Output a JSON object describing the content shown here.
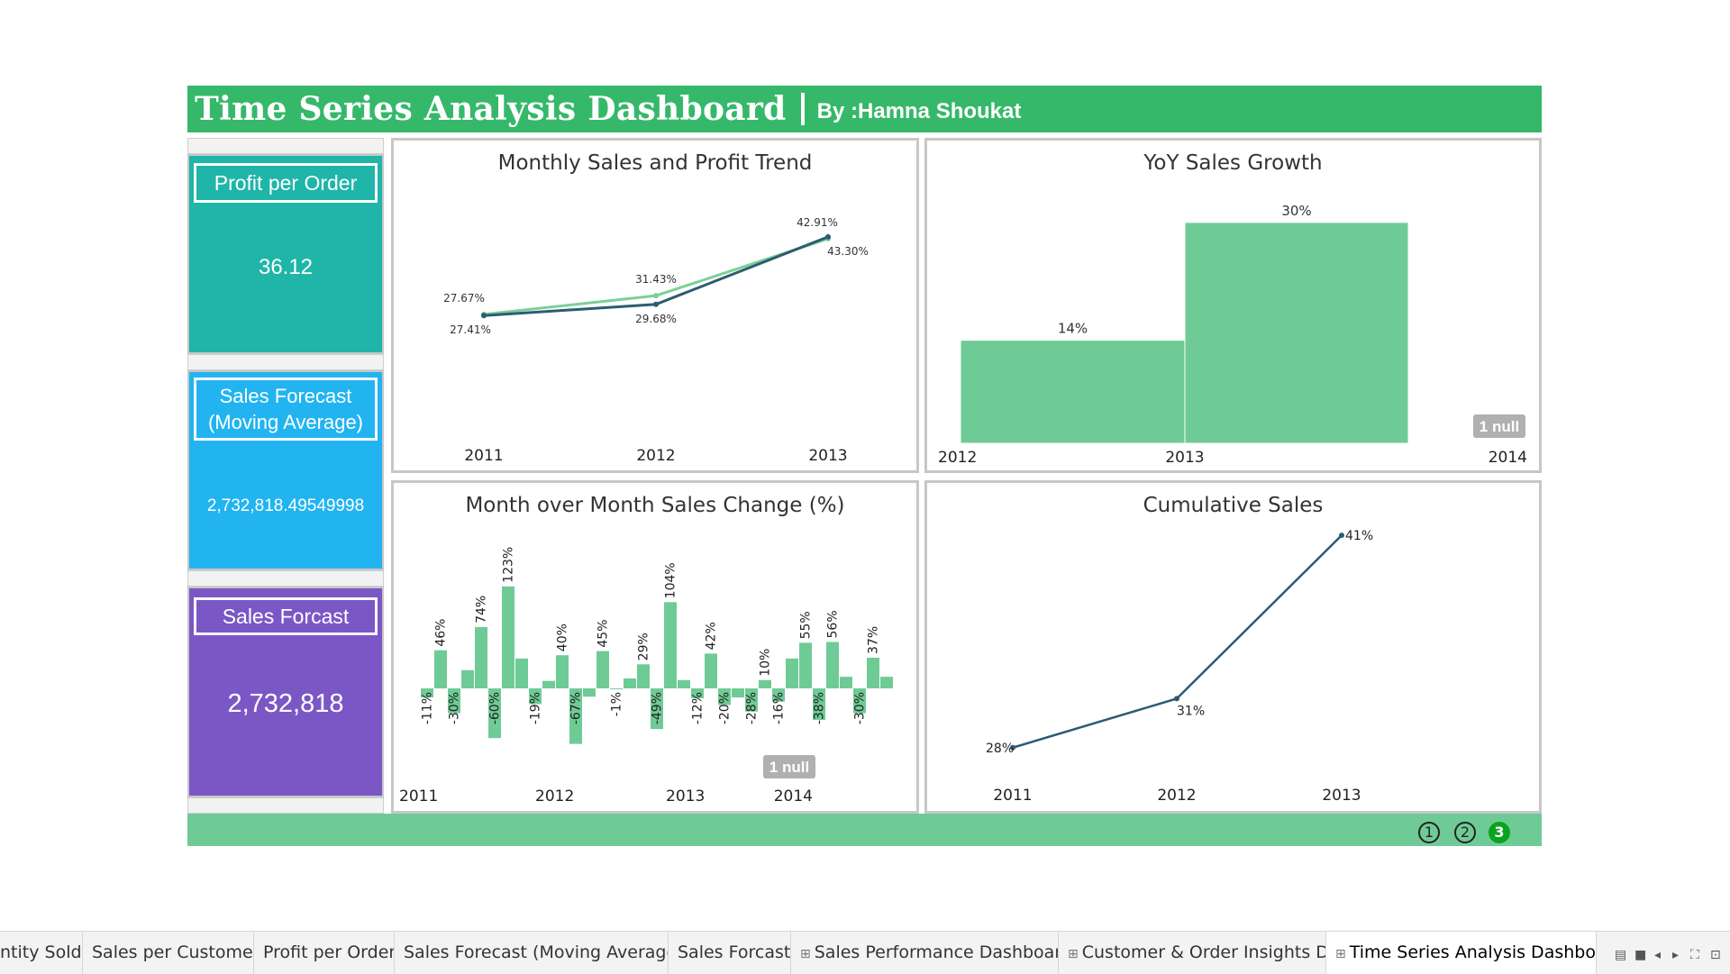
{
  "header": {
    "title": "Time Series Analysis Dashboard",
    "byline": "By :Hamna Shoukat"
  },
  "kpis": [
    {
      "label": "Profit per Order",
      "value": "36.12",
      "color": "#20b5a9"
    },
    {
      "label": "Sales Forecast (Moving Average)",
      "value": "2,732,818.49549998",
      "color": "#22b4f0"
    },
    {
      "label": "Sales Forcast",
      "value": "2,732,818",
      "color": "#7b57c6"
    }
  ],
  "panels": {
    "monthly": {
      "title": "Monthly Sales and Profit Trend"
    },
    "yoy": {
      "title": "YoY Sales Growth",
      "null_badge": "1 null"
    },
    "mom": {
      "title": "Month over Month Sales Change (%)",
      "null_badge": "1 null"
    },
    "cumulative": {
      "title": "Cumulative Sales"
    }
  },
  "chart_data": [
    {
      "type": "line",
      "title": "Monthly Sales and Profit Trend",
      "x": [
        "2011",
        "2012",
        "2013"
      ],
      "series": [
        {
          "values": [
            27.67,
            31.43,
            42.91
          ],
          "labels": [
            "27.67%",
            "31.43%",
            "42.91%"
          ],
          "color": "#7ccf98"
        },
        {
          "values": [
            27.41,
            29.68,
            43.3
          ],
          "labels": [
            "27.41%",
            "29.68%",
            "43.30%"
          ],
          "color": "#2b5c72"
        }
      ],
      "ylim": [
        0,
        60
      ]
    },
    {
      "type": "bar",
      "title": "YoY Sales Growth",
      "x_ticks": [
        "2012",
        "2013",
        "2014"
      ],
      "categories": [
        "2012",
        "2013"
      ],
      "values": [
        14,
        30
      ],
      "labels": [
        "14%",
        "30%"
      ],
      "ylim": [
        0,
        35
      ],
      "color": "#6fcb95"
    },
    {
      "type": "bar",
      "title": "Month over Month Sales Change (%)",
      "x_ticks": [
        "2011",
        "2012",
        "2013",
        "2014"
      ],
      "values": [
        -11,
        46,
        -30,
        22,
        74,
        -60,
        123,
        36,
        -19,
        9,
        40,
        -67,
        -10,
        45,
        -1,
        12,
        29,
        -49,
        104,
        10,
        -12,
        42,
        -20,
        -11,
        -28,
        10,
        -16,
        36,
        55,
        -38,
        56,
        14,
        -30,
        37,
        14
      ],
      "labels": [
        "-11%",
        "46%",
        "-30%",
        "",
        "74%",
        "-60%",
        "123%",
        "",
        "-19%",
        "",
        "40%",
        "-67%",
        "",
        "45%",
        "-1%",
        "",
        "29%",
        "-49%",
        "104%",
        "",
        "-12%",
        "42%",
        "-20%",
        "",
        "-28%",
        "10%",
        "-16%",
        "",
        "55%",
        "-38%",
        "56%",
        "",
        "-30%",
        "37%",
        ""
      ],
      "ylim": [
        -70,
        125
      ],
      "color": "#6fcb95"
    },
    {
      "type": "line",
      "title": "Cumulative Sales",
      "x": [
        "2011",
        "2012",
        "2013"
      ],
      "values": [
        28,
        31,
        41
      ],
      "labels": [
        "28%",
        "31%",
        "41%"
      ],
      "ylim": [
        26,
        42
      ],
      "color": "#2b5c72"
    }
  ],
  "pagination": [
    "1",
    "2",
    "3"
  ],
  "tabs": [
    {
      "label": "ntity Sold",
      "active": false,
      "dashboard": false
    },
    {
      "label": "Sales per Customer",
      "active": false,
      "dashboard": false
    },
    {
      "label": "Profit per Order",
      "active": false,
      "dashboard": false
    },
    {
      "label": "Sales Forecast (Moving Average)",
      "active": false,
      "dashboard": false
    },
    {
      "label": "Sales Forcast",
      "active": false,
      "dashboard": false
    },
    {
      "label": "Sales Performance Dashboard",
      "active": false,
      "dashboard": true
    },
    {
      "label": "Customer & Order Insights Da...",
      "active": false,
      "dashboard": true
    },
    {
      "label": "Time Series Analysis Dashbo...",
      "active": true,
      "dashboard": true
    }
  ]
}
